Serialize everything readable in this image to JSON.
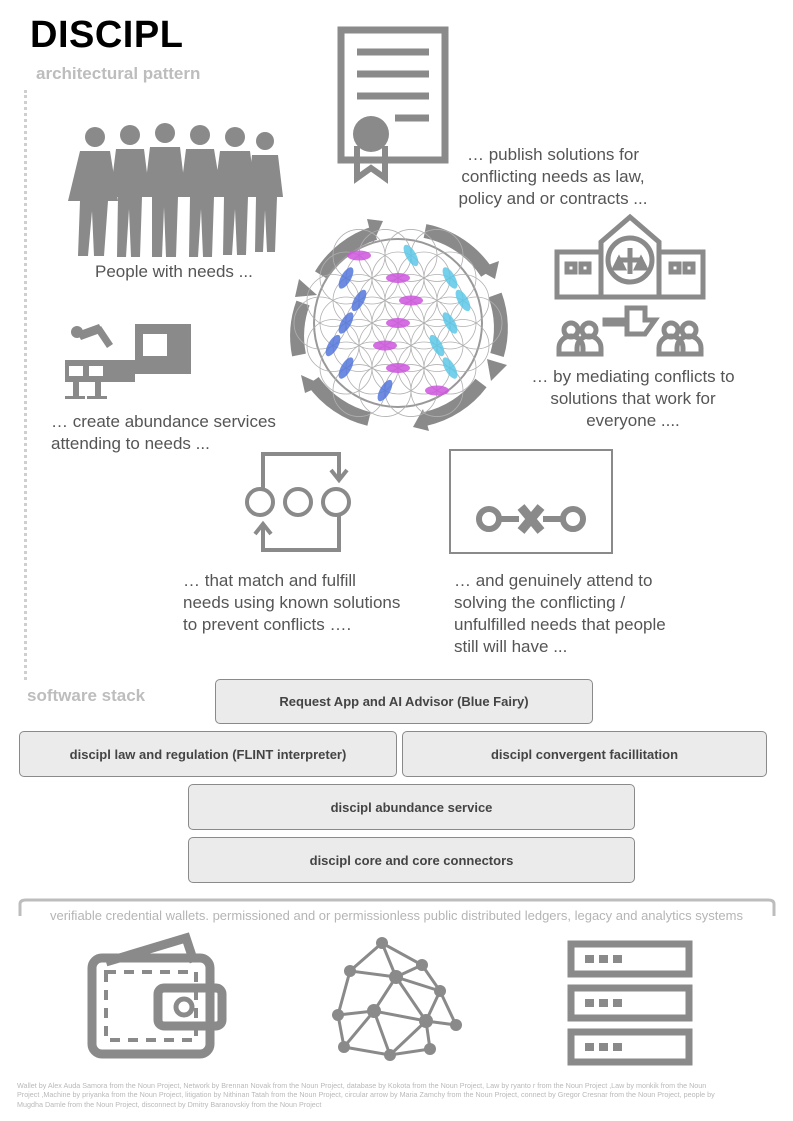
{
  "header": {
    "title": "DISCIPL",
    "subtitle": "architectural pattern"
  },
  "pattern": {
    "people": "People with needs ...",
    "publish": "… publish solutions for conflicting needs as law, policy and or contracts ...",
    "mediate": "… by mediating conflicts to solutions that work for everyone ....",
    "abundance": "… create abundance services attending to needs ...",
    "match": "… that match and fulfill needs using known solutions to prevent conflicts ….",
    "attend": "… and genuinely attend to solving the conflicting / unfulfilled needs that people still will have ..."
  },
  "stack": {
    "label": "software stack",
    "request_app": "Request App and AI Advisor (Blue Fairy)",
    "law": "discipl law and regulation (FLINT interpreter)",
    "convergent": "discipl convergent facillitation",
    "abundance_service": "discipl abundance service",
    "core": "discipl core and core connectors",
    "infrastructure": "verifiable credential wallets. permissioned and or permissionless public distributed ledgers, legacy and analytics systems"
  },
  "credits": "Wallet by Alex Auda Samora from the Noun Project, Network by Brennan Novak from the Noun Project, database by Kokota from the Noun Project, Law by ryanto r from the Noun Project ,Law by monkik from the Noun Project ,Machine by priyanka from the Noun Project, litigation by Nithinan Tatah from the Noun Project, circular arrow by Maria Zamchy from the Noun Project, connect by Gregor Cresnar from the Noun Project, people by Mugdha Damle from the Noun Project, disconnect by Dmitry Baranovskiy from the Noun Project",
  "colors": {
    "icon_gray": "#8a8a8a",
    "box_fill": "#ebebeb",
    "petal_magenta": "#cc55dd",
    "petal_cyan": "#5cc8e8",
    "petal_blue": "#5577dd"
  }
}
